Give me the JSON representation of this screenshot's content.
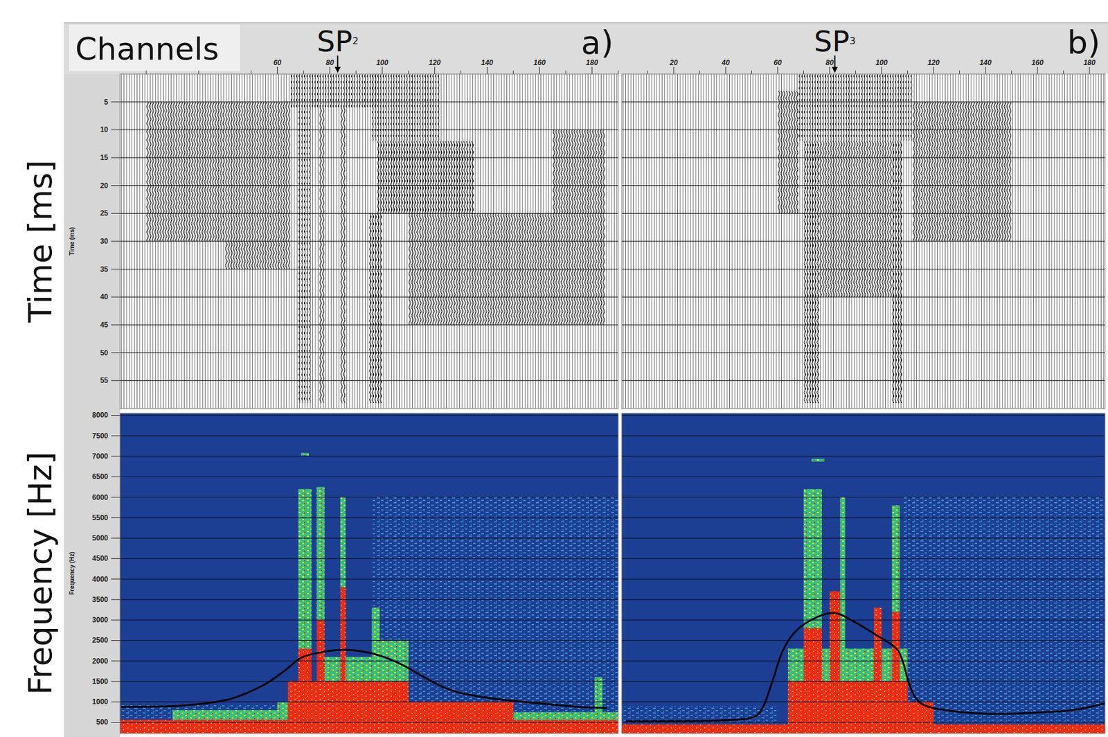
{
  "figure": {
    "x_label": "Channels",
    "time_label": "Time [ms]",
    "freq_label": "Frequency [Hz]",
    "time_label_small": "Time (ms)",
    "freq_label_small": "Frequency (Hz)"
  },
  "chart_data": [
    {
      "type": "line",
      "title": "a)",
      "annotation": {
        "text": "SP",
        "subscript": "2",
        "x": 83
      },
      "xlim": [
        0,
        190
      ],
      "xticks": [
        60,
        80,
        100,
        120,
        140,
        160,
        180
      ],
      "ylim": [
        230,
        8050
      ],
      "yticks": [
        500,
        1000,
        1500,
        2000,
        2500,
        3000,
        3500,
        4000,
        4500,
        5000,
        5500,
        6000,
        6500,
        7000,
        7500,
        8000
      ],
      "grid": true,
      "time": {
        "ylim": [
          0,
          60
        ],
        "yticks": [
          5,
          10,
          15,
          20,
          25,
          30,
          35,
          40,
          45,
          50,
          55
        ],
        "zones": [
          [
            10,
            40,
            5,
            30,
            1
          ],
          [
            40,
            65,
            5,
            35,
            1
          ],
          [
            65,
            98,
            0,
            6,
            3
          ],
          [
            68,
            73,
            6,
            59,
            3
          ],
          [
            76,
            78,
            6,
            59,
            1
          ],
          [
            84,
            86,
            6,
            59,
            1
          ],
          [
            96,
            122,
            0,
            12,
            3
          ],
          [
            98,
            135,
            12,
            25,
            2
          ],
          [
            110,
            165,
            25,
            45,
            1
          ],
          [
            95,
            100,
            25,
            59,
            2
          ],
          [
            165,
            185,
            10,
            45,
            1
          ]
        ]
      },
      "spectrogram": {
        "colors": [
          "#1c3f93",
          "#4aa3e0",
          "#35c46a",
          "#ee2a18"
        ],
        "cells": [
          [
            0,
            190,
            560,
            950,
            1
          ],
          [
            96,
            190,
            950,
            6000,
            1
          ],
          [
            20,
            66,
            560,
            800,
            2
          ],
          [
            0,
            190,
            230,
            560,
            3
          ],
          [
            60,
            68,
            560,
            1000,
            2
          ],
          [
            64,
            110,
            560,
            1500,
            3
          ],
          [
            100,
            150,
            560,
            1000,
            3
          ],
          [
            150,
            190,
            560,
            750,
            2
          ],
          [
            78,
            96,
            1500,
            2100,
            2
          ],
          [
            98,
            110,
            1500,
            2500,
            2
          ],
          [
            68,
            73,
            1500,
            2300,
            3
          ],
          [
            68,
            73,
            2300,
            6200,
            2
          ],
          [
            75,
            78,
            1500,
            3000,
            3
          ],
          [
            75,
            78,
            3000,
            6250,
            2
          ],
          [
            84,
            86,
            1500,
            3800,
            3
          ],
          [
            84,
            86,
            3800,
            6000,
            2
          ],
          [
            96,
            99,
            1500,
            3300,
            2
          ],
          [
            181,
            184,
            560,
            1600,
            2
          ],
          [
            69,
            72,
            7020,
            7080,
            2
          ]
        ]
      },
      "series": [
        {
          "color": "#000000",
          "x": [
            0.4,
            21.9,
            40.7,
            54.1,
            62.1,
            68.9,
            75.6,
            83.6,
            91.7,
            99.7,
            107.8,
            115.8,
            123.9,
            131.9,
            142.7,
            158.8,
            174.9,
            185.6
          ],
          "values": [
            880,
            900,
            1050,
            1390,
            1730,
            2070,
            2200,
            2270,
            2240,
            2120,
            1900,
            1610,
            1340,
            1190,
            1080,
            970,
            880,
            850
          ]
        }
      ]
    },
    {
      "type": "line",
      "title": "b)",
      "annotation": {
        "text": "SP",
        "subscript": "3",
        "x": 82
      },
      "xlim": [
        0,
        186
      ],
      "xticks": [
        20,
        40,
        60,
        80,
        100,
        120,
        140,
        160,
        180
      ],
      "ylim": [
        230,
        8050
      ],
      "yticks": [
        500,
        1000,
        1500,
        2000,
        2500,
        3000,
        3500,
        4000,
        4500,
        5000,
        5500,
        6000,
        6500,
        7000,
        7500,
        8000
      ],
      "grid": true,
      "time": {
        "ylim": [
          0,
          60
        ],
        "yticks": [
          5,
          10,
          15,
          20,
          25,
          30,
          35,
          40,
          45,
          50,
          55
        ],
        "zones": [
          [
            112,
            150,
            5,
            30,
            1
          ],
          [
            60,
            68,
            3,
            25,
            1
          ],
          [
            68,
            112,
            0,
            12,
            3
          ],
          [
            70,
            76,
            12,
            59,
            2
          ],
          [
            76,
            104,
            12,
            40,
            1
          ],
          [
            104,
            108,
            12,
            59,
            2
          ]
        ]
      },
      "spectrogram": {
        "colors": [
          "#1c3f93",
          "#4aa3e0",
          "#35c46a",
          "#ee2a18"
        ],
        "cells": [
          [
            0,
            60,
            450,
            900,
            1
          ],
          [
            108,
            186,
            450,
            6000,
            1
          ],
          [
            0,
            186,
            230,
            450,
            3
          ],
          [
            64,
            110,
            450,
            1500,
            3
          ],
          [
            110,
            120,
            450,
            1000,
            3
          ],
          [
            64,
            110,
            1500,
            2300,
            2
          ],
          [
            70,
            77,
            1500,
            2800,
            3
          ],
          [
            70,
            77,
            2800,
            6200,
            2
          ],
          [
            80,
            84,
            1500,
            3700,
            3
          ],
          [
            84,
            86,
            1500,
            6000,
            2
          ],
          [
            97,
            100,
            1500,
            3300,
            3
          ],
          [
            104,
            107,
            1500,
            3200,
            3
          ],
          [
            104,
            107,
            3200,
            5800,
            2
          ],
          [
            73,
            78,
            6870,
            6940,
            2
          ]
        ]
      },
      "series": [
        {
          "color": "#000000",
          "x": [
            1.5,
            32.0,
            48.3,
            53.7,
            57.8,
            61.9,
            67.3,
            75.5,
            82.3,
            89.1,
            97.3,
            105.4,
            108.2,
            110.9,
            115.0,
            124.5,
            140.8,
            157.1,
            173.5,
            186.6
          ],
          "values": [
            525,
            540,
            590,
            800,
            1470,
            2240,
            2750,
            3080,
            3170,
            2970,
            2660,
            2320,
            1980,
            1390,
            970,
            800,
            710,
            730,
            800,
            970
          ]
        }
      ]
    }
  ]
}
